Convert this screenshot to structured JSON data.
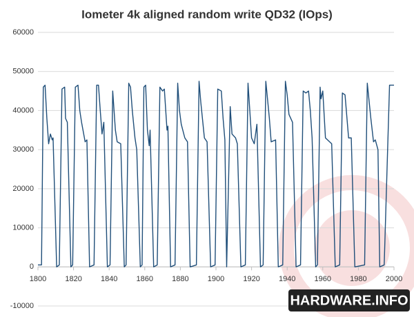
{
  "chart_data": {
    "type": "line",
    "title": "Iometer 4k aligned random write QD32 (IOps)",
    "x": [
      1800,
      1802,
      1803,
      1804,
      1805,
      1806,
      1807,
      1808,
      1808.5,
      1810.5,
      1812,
      1813.5,
      1815,
      1815.5,
      1816.5,
      1818.5,
      1819.5,
      1821,
      1822.5,
      1823.5,
      1824.5,
      1826.5,
      1827.5,
      1829,
      1831.5,
      1833,
      1834,
      1835,
      1836,
      1837,
      1839,
      1840.5,
      1842,
      1843.5,
      1844.5,
      1846.5,
      1848.5,
      1849.5,
      1851,
      1852,
      1853,
      1854.5,
      1855.5,
      1857.5,
      1858.5,
      1859.5,
      1860.5,
      1861.5,
      1862.5,
      1863,
      1865,
      1867,
      1868.5,
      1870,
      1871,
      1872.5,
      1873,
      1874.5,
      1877,
      1878.5,
      1879.5,
      1880.5,
      1882.5,
      1884,
      1885.5,
      1889,
      1890.5,
      1891.5,
      1893.5,
      1895,
      1897,
      1899.5,
      1901,
      1903,
      1904,
      1905,
      1906,
      1908,
      1909,
      1911,
      1912,
      1914,
      1916.5,
      1918,
      1920,
      1921.5,
      1923,
      1925,
      1926.5,
      1928,
      1930,
      1931,
      1933.5,
      1935,
      1937.5,
      1939,
      1940,
      1941,
      1943,
      1945,
      1947.5,
      1949,
      1950.5,
      1952,
      1953,
      1954,
      1956,
      1957,
      1958.5,
      1959,
      1960,
      1961.5,
      1965,
      1967,
      1969.5,
      1971,
      1972.5,
      1974.5,
      1976,
      1978,
      1983.5,
      1985,
      1987,
      1988.5,
      1989.5,
      1991,
      1992,
      1994.5,
      1997.5,
      2000
    ],
    "series": [
      {
        "color": "#1f4e79",
        "values": [
          500,
          500,
          46000,
          46500,
          38000,
          31500,
          34000,
          32500,
          33000,
          0,
          500,
          45500,
          46000,
          38000,
          37000,
          0,
          500,
          46000,
          46500,
          40000,
          37000,
          32000,
          32500,
          0,
          500,
          46500,
          46500,
          40000,
          34000,
          37000,
          0,
          500,
          45000,
          35000,
          32000,
          31500,
          0,
          500,
          47000,
          46000,
          40000,
          33000,
          30000,
          0,
          500,
          46000,
          46500,
          35000,
          31000,
          35000,
          0,
          500,
          46000,
          45000,
          45500,
          35000,
          36000,
          0,
          500,
          47000,
          40000,
          36500,
          33000,
          32000,
          0,
          500,
          47500,
          42000,
          33000,
          32000,
          0,
          500,
          45500,
          45000,
          38000,
          32500,
          0,
          41000,
          34000,
          33000,
          31500,
          0,
          500,
          47000,
          33000,
          31500,
          36500,
          0,
          500,
          47500,
          38000,
          32000,
          32500,
          0,
          500,
          47500,
          44000,
          39000,
          37000,
          0,
          500,
          45000,
          44500,
          45000,
          40000,
          33000,
          0,
          500,
          46000,
          43000,
          45000,
          33000,
          31500,
          0,
          500,
          44500,
          44000,
          33000,
          33000,
          0,
          500,
          47000,
          38000,
          32000,
          32500,
          30000,
          0,
          500,
          46500,
          46500
        ]
      }
    ],
    "xlim": [
      1800,
      2000
    ],
    "xticks": [
      1800,
      1820,
      1840,
      1860,
      1880,
      1900,
      1920,
      1940,
      1960,
      1980,
      2000
    ],
    "ylim": [
      -10000,
      60000
    ],
    "yticks": [
      -10000,
      0,
      10000,
      20000,
      30000,
      40000,
      50000,
      60000
    ],
    "grid": true,
    "watermark": "HARDWARE.INFO"
  }
}
